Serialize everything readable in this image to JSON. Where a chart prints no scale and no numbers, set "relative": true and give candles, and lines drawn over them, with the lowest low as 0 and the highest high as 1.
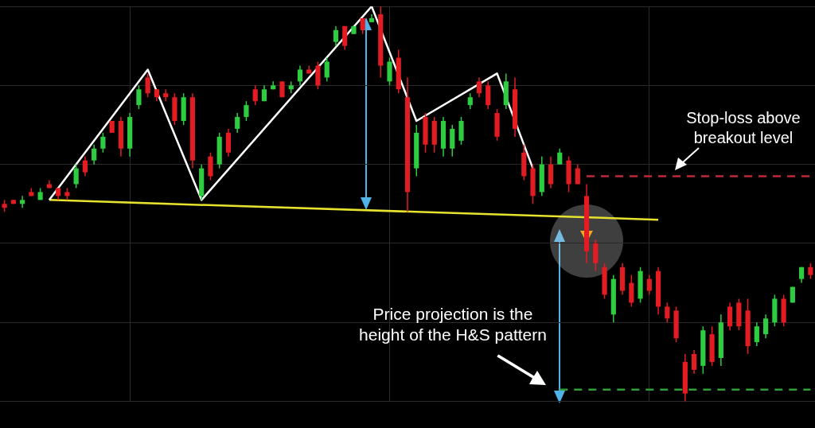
{
  "chart_data": {
    "type": "candlestick",
    "relative": true,
    "grid": true,
    "legend": false,
    "categories": [
      null,
      null,
      null,
      null,
      null,
      null,
      null,
      null,
      null,
      null,
      null,
      null,
      null,
      null,
      null,
      null,
      null,
      null,
      null,
      null,
      null,
      null,
      null,
      null,
      null,
      null,
      null,
      null,
      null,
      null,
      null,
      null,
      null,
      null,
      null,
      null,
      null,
      null,
      null,
      null,
      null,
      null,
      null,
      null,
      null,
      null,
      null,
      null,
      null,
      null,
      null,
      null,
      null,
      null,
      null,
      null,
      null,
      null,
      null,
      null,
      null,
      null,
      null,
      null,
      null,
      null,
      null,
      null,
      null,
      null,
      null,
      null,
      null,
      null,
      null,
      null,
      null,
      null,
      null,
      null,
      null,
      null,
      null,
      null,
      null,
      null,
      null,
      null,
      null,
      null,
      null
    ],
    "ohlc": [
      [
        0.5,
        0.51,
        0.48,
        0.49
      ],
      [
        0.51,
        0.51,
        0.5,
        0.5
      ],
      [
        0.5,
        0.52,
        0.49,
        0.51
      ],
      [
        0.53,
        0.54,
        0.52,
        0.52
      ],
      [
        0.51,
        0.54,
        0.51,
        0.53
      ],
      [
        0.55,
        0.56,
        0.54,
        0.54
      ],
      [
        0.54,
        0.54,
        0.51,
        0.52
      ],
      [
        0.53,
        0.54,
        0.51,
        0.52
      ],
      [
        0.55,
        0.6,
        0.54,
        0.59
      ],
      [
        0.61,
        0.62,
        0.57,
        0.58
      ],
      [
        0.61,
        0.65,
        0.6,
        0.64
      ],
      [
        0.64,
        0.68,
        0.63,
        0.67
      ],
      [
        0.71,
        0.71,
        0.68,
        0.68
      ],
      [
        0.71,
        0.72,
        0.62,
        0.64
      ],
      [
        0.64,
        0.73,
        0.62,
        0.72
      ],
      [
        0.75,
        0.8,
        0.74,
        0.79
      ],
      [
        0.82,
        0.83,
        0.77,
        0.78
      ],
      [
        0.79,
        0.79,
        0.76,
        0.77
      ],
      [
        0.78,
        0.79,
        0.76,
        0.77
      ],
      [
        0.77,
        0.78,
        0.7,
        0.71
      ],
      [
        0.71,
        0.78,
        0.7,
        0.77
      ],
      [
        0.77,
        0.78,
        0.59,
        0.61
      ],
      [
        0.52,
        0.6,
        0.51,
        0.59
      ],
      [
        0.62,
        0.63,
        0.56,
        0.57
      ],
      [
        0.6,
        0.68,
        0.59,
        0.67
      ],
      [
        0.68,
        0.69,
        0.62,
        0.63
      ],
      [
        0.69,
        0.73,
        0.68,
        0.72
      ],
      [
        0.72,
        0.76,
        0.71,
        0.75
      ],
      [
        0.79,
        0.8,
        0.75,
        0.76
      ],
      [
        0.76,
        0.8,
        0.76,
        0.79
      ],
      [
        0.79,
        0.81,
        0.79,
        0.8
      ],
      [
        0.81,
        0.81,
        0.77,
        0.77
      ],
      [
        0.79,
        0.81,
        0.78,
        0.8
      ],
      [
        0.81,
        0.85,
        0.8,
        0.84
      ],
      [
        0.84,
        0.85,
        0.83,
        0.83
      ],
      [
        0.85,
        0.86,
        0.79,
        0.8
      ],
      [
        0.82,
        0.87,
        0.81,
        0.86
      ],
      [
        0.91,
        0.95,
        0.9,
        0.94
      ],
      [
        0.95,
        0.95,
        0.89,
        0.9
      ],
      [
        0.93,
        0.95,
        0.93,
        0.95
      ],
      [
        0.97,
        0.97,
        0.93,
        0.94
      ],
      [
        0.96,
        0.98,
        0.96,
        0.97
      ],
      [
        0.98,
        1,
        0.82,
        0.85
      ],
      [
        0.81,
        0.87,
        0.8,
        0.86
      ],
      [
        0.87,
        0.89,
        0.78,
        0.79
      ],
      [
        0.77,
        0.82,
        0.48,
        0.53
      ],
      [
        0.59,
        0.7,
        0.57,
        0.68
      ],
      [
        0.72,
        0.73,
        0.63,
        0.65
      ],
      [
        0.71,
        0.72,
        0.63,
        0.65
      ],
      [
        0.64,
        0.72,
        0.62,
        0.71
      ],
      [
        0.64,
        0.7,
        0.62,
        0.69
      ],
      [
        0.66,
        0.72,
        0.65,
        0.71
      ],
      [
        0.75,
        0.78,
        0.74,
        0.77
      ],
      [
        0.81,
        0.82,
        0.77,
        0.78
      ],
      [
        0.8,
        0.81,
        0.74,
        0.75
      ],
      [
        0.73,
        0.74,
        0.66,
        0.67
      ],
      [
        0.75,
        0.83,
        0.74,
        0.81
      ],
      [
        0.79,
        0.82,
        0.67,
        0.69
      ],
      [
        0.63,
        0.65,
        0.56,
        0.57
      ],
      [
        0.59,
        0.6,
        0.5,
        0.52
      ],
      [
        0.53,
        0.62,
        0.52,
        0.6
      ],
      [
        0.6,
        0.62,
        0.54,
        0.55
      ],
      [
        0.6,
        0.64,
        0.6,
        0.63
      ],
      [
        0.61,
        0.62,
        0.53,
        0.55
      ],
      [
        0.59,
        0.6,
        0.55,
        0.55
      ],
      [
        0.52,
        0.55,
        0.35,
        0.38
      ],
      [
        0.4,
        0.41,
        0.33,
        0.35
      ],
      [
        0.34,
        0.35,
        0.26,
        0.27
      ],
      [
        0.22,
        0.32,
        0.2,
        0.31
      ],
      [
        0.34,
        0.35,
        0.27,
        0.28
      ],
      [
        0.3,
        0.32,
        0.24,
        0.25
      ],
      [
        0.26,
        0.34,
        0.25,
        0.33
      ],
      [
        0.31,
        0.32,
        0.27,
        0.28
      ],
      [
        0.33,
        0.34,
        0.22,
        0.24
      ],
      [
        0.24,
        0.25,
        0.2,
        0.21
      ],
      [
        0.23,
        0.24,
        0.15,
        0.16
      ],
      [
        0.1,
        0.12,
        0,
        0.02
      ],
      [
        0.12,
        0.13,
        0.07,
        0.08
      ],
      [
        0.09,
        0.19,
        0.07,
        0.18
      ],
      [
        0.17,
        0.19,
        0.09,
        0.1
      ],
      [
        0.11,
        0.22,
        0.09,
        0.2
      ],
      [
        0.24,
        0.25,
        0.18,
        0.19
      ],
      [
        0.25,
        0.26,
        0.18,
        0.19
      ],
      [
        0.23,
        0.26,
        0.12,
        0.14
      ],
      [
        0.15,
        0.2,
        0.14,
        0.19
      ],
      [
        0.17,
        0.22,
        0.16,
        0.21
      ],
      [
        0.2,
        0.27,
        0.19,
        0.26
      ],
      [
        0.26,
        0.27,
        0.19,
        0.2
      ],
      [
        0.25,
        0.29,
        0.25,
        0.29
      ],
      [
        0.31,
        0.34,
        0.3,
        0.34
      ],
      [
        0.34,
        0.35,
        0.31,
        0.32
      ]
    ],
    "colors": [
      "#e31b23",
      "#e31b23",
      "#2ecc40",
      "#e31b23",
      "#2ecc40",
      "#e31b23",
      "#e31b23",
      "#e31b23",
      "#2ecc40",
      "#e31b23",
      "#2ecc40",
      "#2ecc40",
      "#e31b23",
      "#e31b23",
      "#2ecc40",
      "#2ecc40",
      "#e31b23",
      "#e31b23",
      "#e31b23",
      "#e31b23",
      "#2ecc40",
      "#e31b23",
      "#2ecc40",
      "#e31b23",
      "#2ecc40",
      "#e31b23",
      "#2ecc40",
      "#2ecc40",
      "#e31b23",
      "#2ecc40",
      "#2ecc40",
      "#e31b23",
      "#2ecc40",
      "#2ecc40",
      "#e31b23",
      "#e31b23",
      "#2ecc40",
      "#2ecc40",
      "#e31b23",
      "#2ecc40",
      "#e31b23",
      "#2ecc40",
      "#e31b23",
      "#2ecc40",
      "#e31b23",
      "#e31b23",
      "#2ecc40",
      "#e31b23",
      "#e31b23",
      "#2ecc40",
      "#2ecc40",
      "#2ecc40",
      "#2ecc40",
      "#e31b23",
      "#e31b23",
      "#e31b23",
      "#2ecc40",
      "#e31b23",
      "#e31b23",
      "#e31b23",
      "#2ecc40",
      "#e31b23",
      "#2ecc40",
      "#e31b23",
      "#e31b23",
      "#e31b23",
      "#e31b23",
      "#e31b23",
      "#2ecc40",
      "#e31b23",
      "#e31b23",
      "#2ecc40",
      "#e31b23",
      "#e31b23",
      "#e31b23",
      "#e31b23",
      "#e31b23",
      "#e31b23",
      "#2ecc40",
      "#e31b23",
      "#2ecc40",
      "#e31b23",
      "#e31b23",
      "#e31b23",
      "#2ecc40",
      "#2ecc40",
      "#2ecc40",
      "#e31b23",
      "#2ecc40",
      "#2ecc40",
      "#e31b23"
    ],
    "series": [
      {
        "type": "line",
        "color": "#ffffff",
        "values": [
          null,
          null,
          null,
          null,
          null,
          0.51,
          null,
          null,
          null,
          null,
          null,
          null,
          null,
          null,
          null,
          null,
          0.84,
          null,
          null,
          null,
          null,
          null,
          0.51,
          null,
          null,
          null,
          null,
          null,
          null,
          null,
          null,
          null,
          null,
          null,
          null,
          null,
          null,
          null,
          null,
          null,
          null,
          1,
          null,
          null,
          null,
          null,
          0.71,
          null,
          null,
          null,
          null,
          null,
          null,
          null,
          null,
          0.83,
          null,
          null,
          null,
          0.59,
          null,
          null,
          null,
          null,
          null,
          null,
          null,
          null,
          null,
          null,
          null,
          null,
          null,
          null,
          null,
          null,
          null,
          null,
          null,
          null,
          null,
          null,
          null,
          null,
          null,
          null,
          null,
          null,
          null,
          null,
          null
        ]
      },
      {
        "type": "line",
        "color": "#e6e22e",
        "values": [
          null,
          null,
          null,
          null,
          null,
          0.51,
          null,
          null,
          null,
          null,
          null,
          null,
          null,
          null,
          null,
          null,
          null,
          null,
          null,
          null,
          null,
          null,
          null,
          null,
          null,
          null,
          null,
          null,
          null,
          null,
          null,
          null,
          null,
          null,
          null,
          null,
          null,
          null,
          null,
          null,
          null,
          null,
          null,
          null,
          null,
          null,
          null,
          null,
          null,
          null,
          null,
          null,
          null,
          null,
          null,
          null,
          null,
          null,
          null,
          null,
          null,
          null,
          null,
          null,
          null,
          null,
          null,
          null,
          null,
          null,
          null,
          null,
          null,
          0.46,
          null,
          null,
          null,
          null,
          null,
          null,
          null,
          null,
          null,
          null,
          null,
          null,
          null,
          null,
          null,
          null,
          null
        ]
      },
      {
        "type": "line",
        "color": "#c0283a",
        "line_style": "dashed",
        "values": [
          null,
          null,
          null,
          null,
          null,
          null,
          null,
          null,
          null,
          null,
          null,
          null,
          null,
          null,
          null,
          null,
          null,
          null,
          null,
          null,
          null,
          null,
          null,
          null,
          null,
          null,
          null,
          null,
          null,
          null,
          null,
          null,
          null,
          null,
          null,
          null,
          null,
          null,
          null,
          null,
          null,
          null,
          null,
          null,
          null,
          null,
          null,
          null,
          null,
          null,
          null,
          null,
          null,
          null,
          null,
          null,
          null,
          null,
          null,
          null,
          null,
          null,
          null,
          null,
          null,
          0.57,
          null,
          null,
          null,
          null,
          null,
          null,
          null,
          null,
          null,
          null,
          null,
          null,
          null,
          null,
          null,
          null,
          null,
          null,
          null,
          null,
          null,
          null,
          null,
          null,
          0.57
        ]
      },
      {
        "type": "line",
        "color": "#2e9e3a",
        "line_style": "dashed",
        "values": [
          null,
          null,
          null,
          null,
          null,
          null,
          null,
          null,
          null,
          null,
          null,
          null,
          null,
          null,
          null,
          null,
          null,
          null,
          null,
          null,
          null,
          null,
          null,
          null,
          null,
          null,
          null,
          null,
          null,
          null,
          null,
          null,
          null,
          null,
          null,
          null,
          null,
          null,
          null,
          null,
          null,
          null,
          null,
          null,
          null,
          null,
          null,
          null,
          null,
          null,
          null,
          null,
          null,
          null,
          null,
          null,
          null,
          null,
          null,
          null,
          null,
          null,
          0.03,
          null,
          null,
          null,
          null,
          null,
          null,
          null,
          null,
          null,
          null,
          null,
          null,
          null,
          null,
          null,
          null,
          null,
          null,
          null,
          null,
          null,
          null,
          null,
          null,
          null,
          null,
          null,
          0.03
        ]
      }
    ],
    "annotations": [
      "Stop-loss above breakout level",
      "Price projection is the height of the H&S pattern"
    ]
  }
}
